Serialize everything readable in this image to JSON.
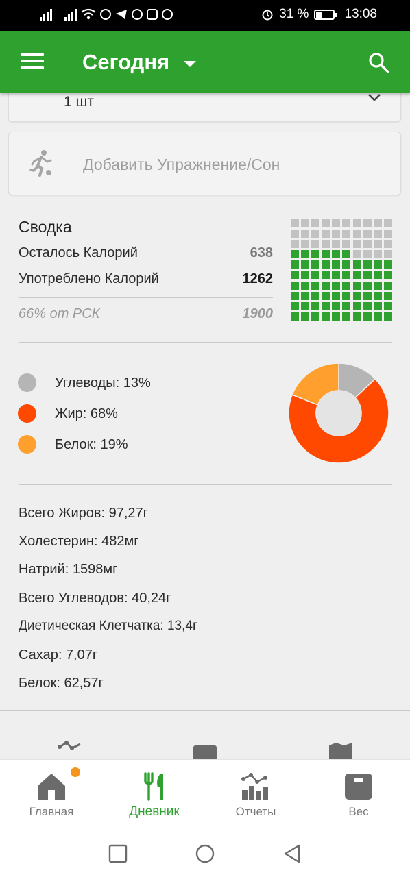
{
  "status_bar": {
    "battery": "31 %",
    "time": "13:08"
  },
  "app_bar": {
    "title": "Сегодня"
  },
  "quantity_card": {
    "value": "1 шт"
  },
  "add_exercise": {
    "label": "Добавить Упражнение/Сон"
  },
  "summary": {
    "title": "Сводка",
    "remaining_label": "Осталось Калорий",
    "remaining_value": "638",
    "consumed_label": "Употреблено Калорий",
    "consumed_value": "1262",
    "rsk_label": "66% от РСК",
    "rsk_value": "1900",
    "progress_fraction": 0.66,
    "colors": {
      "filled": "#2ea12e",
      "empty": "#c2c2c2"
    }
  },
  "macros": {
    "items": [
      {
        "label": "Углеводы: 13%",
        "percent": 13,
        "color": "#b5b5b5"
      },
      {
        "label": "Жир: 68%",
        "percent": 68,
        "color": "#ff4800"
      },
      {
        "label": "Белок: 19%",
        "percent": 19,
        "color": "#ff9f2e"
      }
    ]
  },
  "nutrients": [
    "Всего Жиров: 97,27г",
    "Холестерин: 482мг",
    "Натрий: 1598мг",
    "Всего Углеводов: 40,24г",
    "Диетическая Клетчатка: 13,4г",
    "Сахар: 7,07г",
    "Белок: 62,57г"
  ],
  "bottom_nav": {
    "items": [
      {
        "label": "Главная",
        "icon": "home-icon"
      },
      {
        "label": "Дневник",
        "icon": "fork-knife-icon",
        "active": true
      },
      {
        "label": "Отчеты",
        "icon": "reports-icon"
      },
      {
        "label": "Вес",
        "icon": "scale-icon"
      }
    ]
  },
  "colors": {
    "brand_green": "#2ea12e",
    "notification": "#f7941d"
  }
}
